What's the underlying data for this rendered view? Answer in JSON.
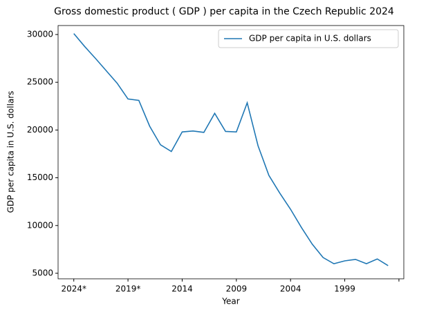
{
  "chart_data": {
    "type": "line",
    "title": "Gross domestic product ( GDP ) per capita in the Czech Republic 2024",
    "xlabel": "Year",
    "ylabel": "GDP per capita in U.S. dollars",
    "categories": [
      "2024*",
      null,
      null,
      null,
      null,
      "2019*",
      null,
      null,
      null,
      null,
      "2014",
      null,
      null,
      null,
      null,
      "2009",
      null,
      null,
      null,
      null,
      "2004",
      null,
      null,
      null,
      null,
      "1999",
      null,
      null,
      null,
      null
    ],
    "xticks": [
      0,
      5,
      10,
      15,
      20,
      25,
      30
    ],
    "series": [
      {
        "name": "GDP per capita in U.S. dollars",
        "color": "#1f77b4",
        "values": [
          30100,
          28750,
          27500,
          26200,
          24900,
          23250,
          23100,
          20400,
          18450,
          17750,
          19800,
          19900,
          19750,
          21750,
          19850,
          19800,
          22850,
          18350,
          15250,
          13400,
          11700,
          9800,
          8050,
          6650,
          6000,
          6300,
          6450,
          6000,
          6500,
          5800
        ]
      }
    ],
    "ylim": [
      4420,
      30940
    ],
    "yticks": [
      5000,
      10000,
      15000,
      20000,
      25000,
      30000
    ],
    "legend": "upper right"
  }
}
